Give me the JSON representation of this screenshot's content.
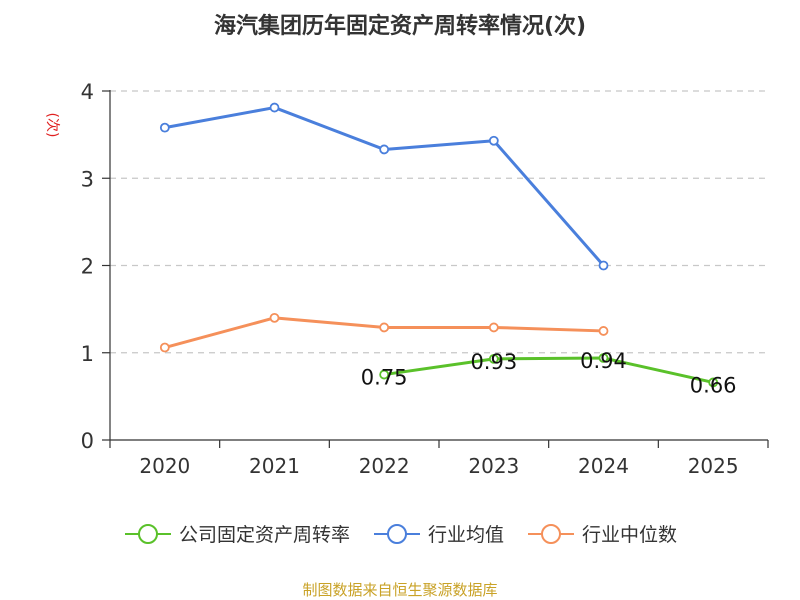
{
  "chart_data": {
    "type": "line",
    "title": "海汽集团历年固定资产周转率情况(次)",
    "ylabel": "(次)",
    "xlabel": "",
    "categories": [
      "2020",
      "2021",
      "2022",
      "2023",
      "2024",
      "2025"
    ],
    "ylim": [
      0,
      4
    ],
    "yticks": [
      0,
      1,
      2,
      3,
      4
    ],
    "grid": true,
    "series": [
      {
        "name": "公司固定资产周转率",
        "color": "#5ac12a",
        "values": [
          null,
          null,
          0.75,
          0.93,
          0.94,
          0.66
        ],
        "labels": [
          null,
          null,
          "0.75",
          "0.93",
          "0.94",
          "0.66"
        ]
      },
      {
        "name": "行业均值",
        "color": "#4a7fdc",
        "values": [
          3.58,
          3.81,
          3.33,
          3.43,
          2.0,
          null
        ]
      },
      {
        "name": "行业中位数",
        "color": "#f5905a",
        "values": [
          1.06,
          1.4,
          1.29,
          1.29,
          1.25,
          null
        ]
      }
    ],
    "legend_position": "bottom",
    "source": "制图数据来自恒生聚源数据库"
  }
}
